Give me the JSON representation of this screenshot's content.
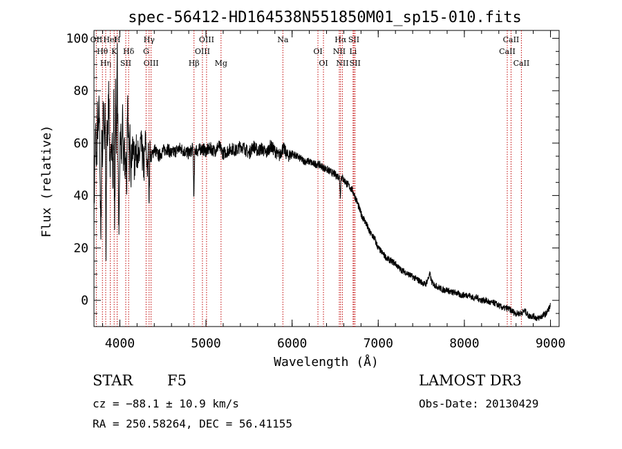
{
  "chart_data": {
    "type": "line",
    "title": "spec-56412-HD164538N551850M01_sp15-010.fits",
    "xlabel": "Wavelength (Å)",
    "ylabel": "Flux (relative)",
    "xlim": [
      3700,
      9100
    ],
    "ylim": [
      -10,
      103
    ],
    "xticks": [
      4000,
      5000,
      6000,
      7000,
      8000,
      9000
    ],
    "yticks": [
      0,
      20,
      40,
      60,
      80,
      100
    ],
    "series": [
      {
        "name": "flux",
        "x": [
          3700,
          3710,
          3720,
          3730,
          3740,
          3750,
          3760,
          3770,
          3780,
          3790,
          3800,
          3810,
          3820,
          3830,
          3840,
          3850,
          3860,
          3870,
          3880,
          3890,
          3900,
          3910,
          3920,
          3930,
          3940,
          3950,
          3960,
          3970,
          3980,
          3990,
          4000,
          4010,
          4020,
          4030,
          4040,
          4050,
          4060,
          4070,
          4080,
          4090,
          4100,
          4110,
          4120,
          4130,
          4140,
          4150,
          4160,
          4170,
          4180,
          4190,
          4200,
          4220,
          4240,
          4260,
          4280,
          4300,
          4320,
          4330,
          4340,
          4350,
          4360,
          4380,
          4400,
          4450,
          4500,
          4550,
          4600,
          4650,
          4700,
          4750,
          4800,
          4850,
          4860,
          4870,
          4880,
          4900,
          4950,
          5000,
          5050,
          5100,
          5150,
          5200,
          5250,
          5300,
          5350,
          5400,
          5450,
          5500,
          5550,
          5600,
          5650,
          5700,
          5750,
          5800,
          5850,
          5890,
          5900,
          5950,
          6000,
          6050,
          6100,
          6150,
          6200,
          6250,
          6300,
          6350,
          6400,
          6450,
          6500,
          6550,
          6560,
          6570,
          6580,
          6600,
          6650,
          6700,
          6750,
          6800,
          6850,
          6900,
          6950,
          7000,
          7050,
          7100,
          7150,
          7200,
          7250,
          7300,
          7350,
          7400,
          7450,
          7500,
          7550,
          7600,
          7620,
          7650,
          7700,
          7750,
          7800,
          7850,
          7900,
          7950,
          8000,
          8050,
          8100,
          8150,
          8200,
          8250,
          8300,
          8350,
          8400,
          8450,
          8500,
          8550,
          8600,
          8650,
          8700,
          8750,
          8800,
          8850,
          8900,
          8950,
          9000
        ],
        "y": [
          30,
          55,
          65,
          50,
          70,
          62,
          75,
          50,
          20,
          65,
          55,
          80,
          60,
          72,
          15,
          70,
          58,
          85,
          60,
          50,
          55,
          68,
          40,
          75,
          25,
          78,
          60,
          95,
          58,
          20,
          55,
          65,
          50,
          72,
          52,
          60,
          50,
          55,
          45,
          80,
          60,
          52,
          64,
          50,
          58,
          55,
          62,
          48,
          60,
          56,
          58,
          52,
          60,
          56,
          50,
          62,
          48,
          58,
          36,
          60,
          54,
          56,
          58,
          55,
          57,
          58,
          56,
          57,
          58,
          57,
          56,
          58,
          38,
          56,
          58,
          57,
          58,
          57,
          58,
          57,
          59,
          56,
          57,
          58,
          57,
          59,
          58,
          56,
          59,
          57,
          58,
          56,
          59,
          57,
          55,
          58,
          58,
          55,
          56,
          55,
          54,
          53,
          53,
          52,
          52,
          51,
          50,
          49,
          48,
          47,
          40,
          47,
          47,
          46,
          44,
          42,
          38,
          33,
          30,
          26,
          24,
          20,
          18,
          16,
          15,
          14,
          12,
          11,
          10,
          9,
          8,
          7,
          6,
          10,
          7,
          6,
          5,
          4,
          4,
          3,
          3,
          2,
          2,
          2,
          1,
          1,
          0,
          0,
          -1,
          -1,
          -2,
          -3,
          -3,
          -4,
          -5,
          -5,
          -4,
          -6,
          -6,
          -7,
          -6,
          -5,
          -2
        ]
      }
    ],
    "lines": [
      {
        "name": "OII",
        "wavelength": 3727
      },
      {
        "name": "Hθ",
        "wavelength": 3798
      },
      {
        "name": "Hη",
        "wavelength": 3836
      },
      {
        "name": "HeI",
        "wavelength": 3889
      },
      {
        "name": "K",
        "wavelength": 3934
      },
      {
        "name": "SII",
        "wavelength": 4069
      },
      {
        "name": "H",
        "wavelength": 3969
      },
      {
        "name": "Hδ",
        "wavelength": 4102
      },
      {
        "name": "OIII",
        "wavelength": 4363
      },
      {
        "name": "Hγ",
        "wavelength": 4340
      },
      {
        "name": "G",
        "wavelength": 4305
      },
      {
        "name": "Hβ",
        "wavelength": 4861
      },
      {
        "name": "OIII",
        "wavelength": 5007
      },
      {
        "name": "OIII",
        "wavelength": 4959
      },
      {
        "name": "Mg",
        "wavelength": 5175
      },
      {
        "name": "Na",
        "wavelength": 5893
      },
      {
        "name": "OI",
        "wavelength": 6300
      },
      {
        "name": "OI",
        "wavelength": 6364
      },
      {
        "name": "Hα",
        "wavelength": 6563
      },
      {
        "name": "NII",
        "wavelength": 6548
      },
      {
        "name": "NII",
        "wavelength": 6584
      },
      {
        "name": "SII",
        "wavelength": 6717
      },
      {
        "name": "Li",
        "wavelength": 6708
      },
      {
        "name": "SII",
        "wavelength": 6731
      },
      {
        "name": "CaII",
        "wavelength": 8542
      },
      {
        "name": "CaII",
        "wavelength": 8498
      },
      {
        "name": "CaII",
        "wavelength": 8662
      }
    ]
  },
  "info": {
    "class": "STAR",
    "subclass": "F5",
    "cz": "cz = −88.1 ± 10.9 km/s",
    "radec": "RA = 250.58264, DEC =  56.41155",
    "survey": "LAMOST DR3",
    "obs_date": "Obs-Date: 20130429"
  }
}
